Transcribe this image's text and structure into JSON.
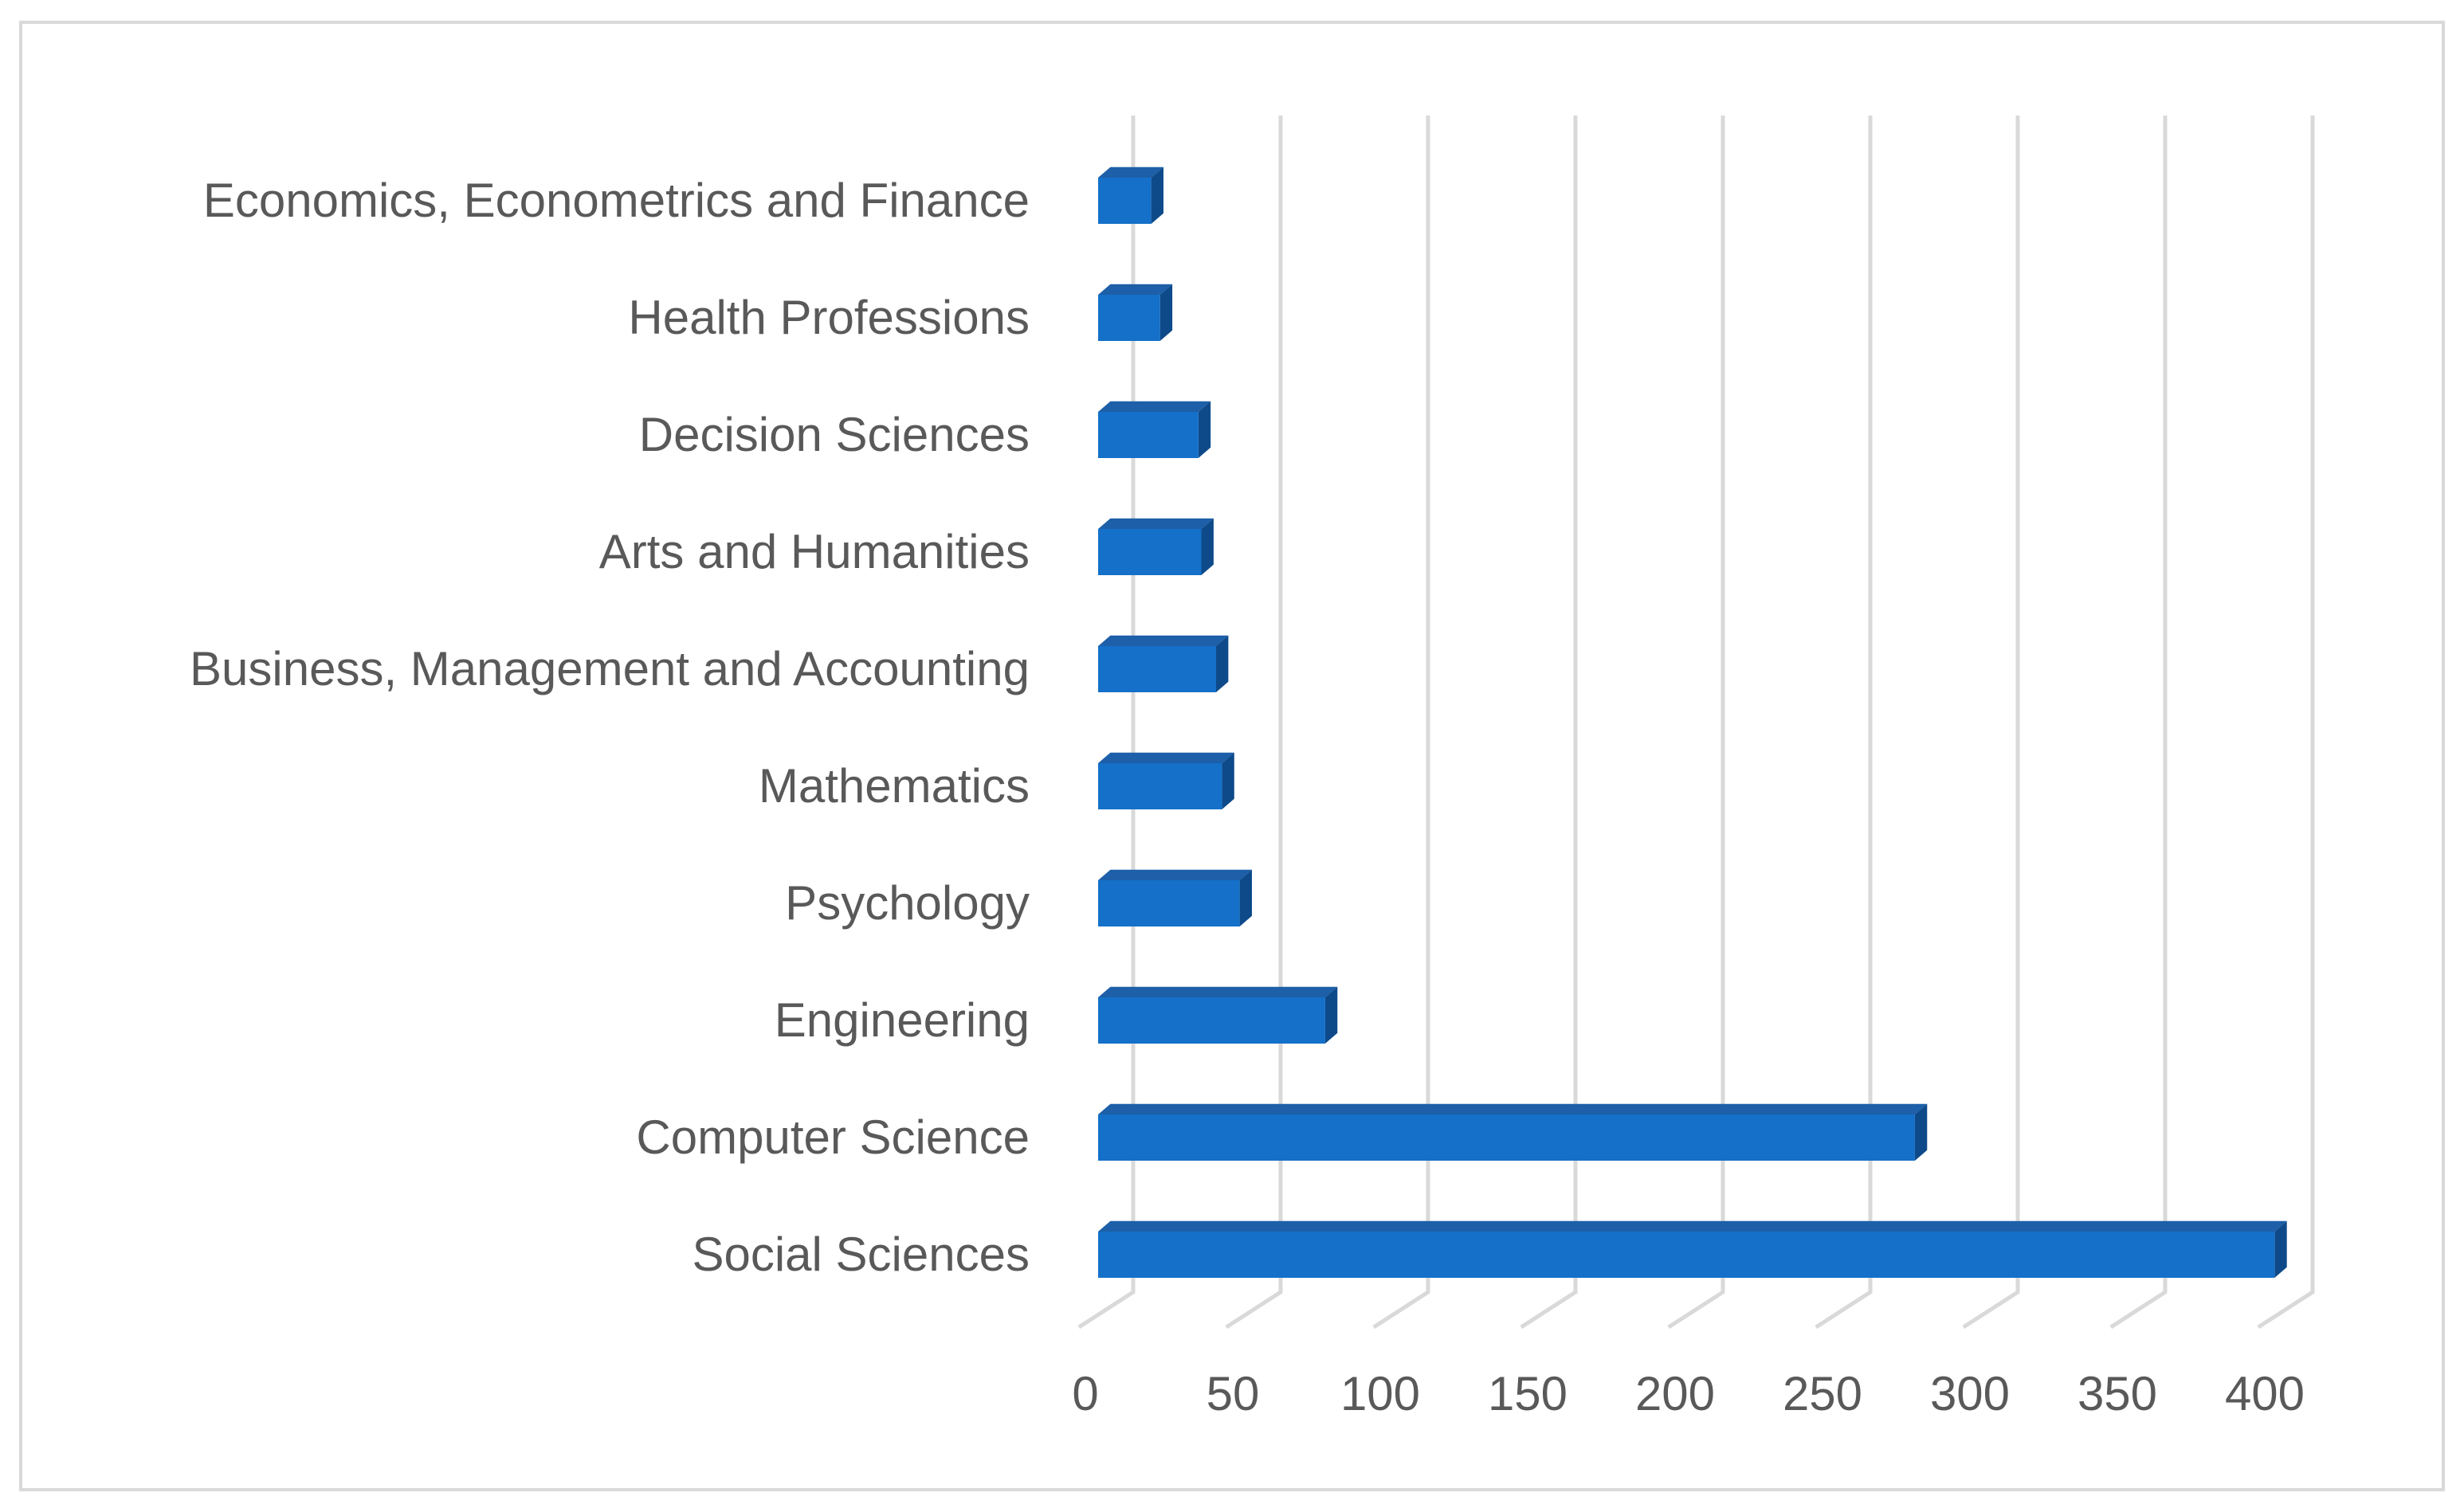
{
  "chart_data": {
    "type": "bar",
    "orientation": "horizontal",
    "style": "3d-clustered-bar",
    "categories": [
      "Economics, Econometrics and Finance",
      "Health Professions",
      "Decision Sciences",
      "Arts and Humanities",
      "Business, Management and Accounting",
      "Mathematics",
      "Psychology",
      "Engineering",
      "Computer Science",
      "Social Sciences"
    ],
    "values": [
      18,
      21,
      34,
      35,
      40,
      42,
      48,
      77,
      277,
      399
    ],
    "xlim": [
      0,
      400
    ],
    "xticks": [
      "0",
      "50",
      "100",
      "150",
      "200",
      "250",
      "300",
      "350",
      "400"
    ],
    "grid": true,
    "legend": "none",
    "colors": {
      "bar_front": "#1470c8",
      "bar_top": "#1d5fa8",
      "bar_side": "#0e4a8a",
      "gridline": "#d9d9d9",
      "text": "#595959",
      "frame": "#d9d9d9"
    }
  }
}
